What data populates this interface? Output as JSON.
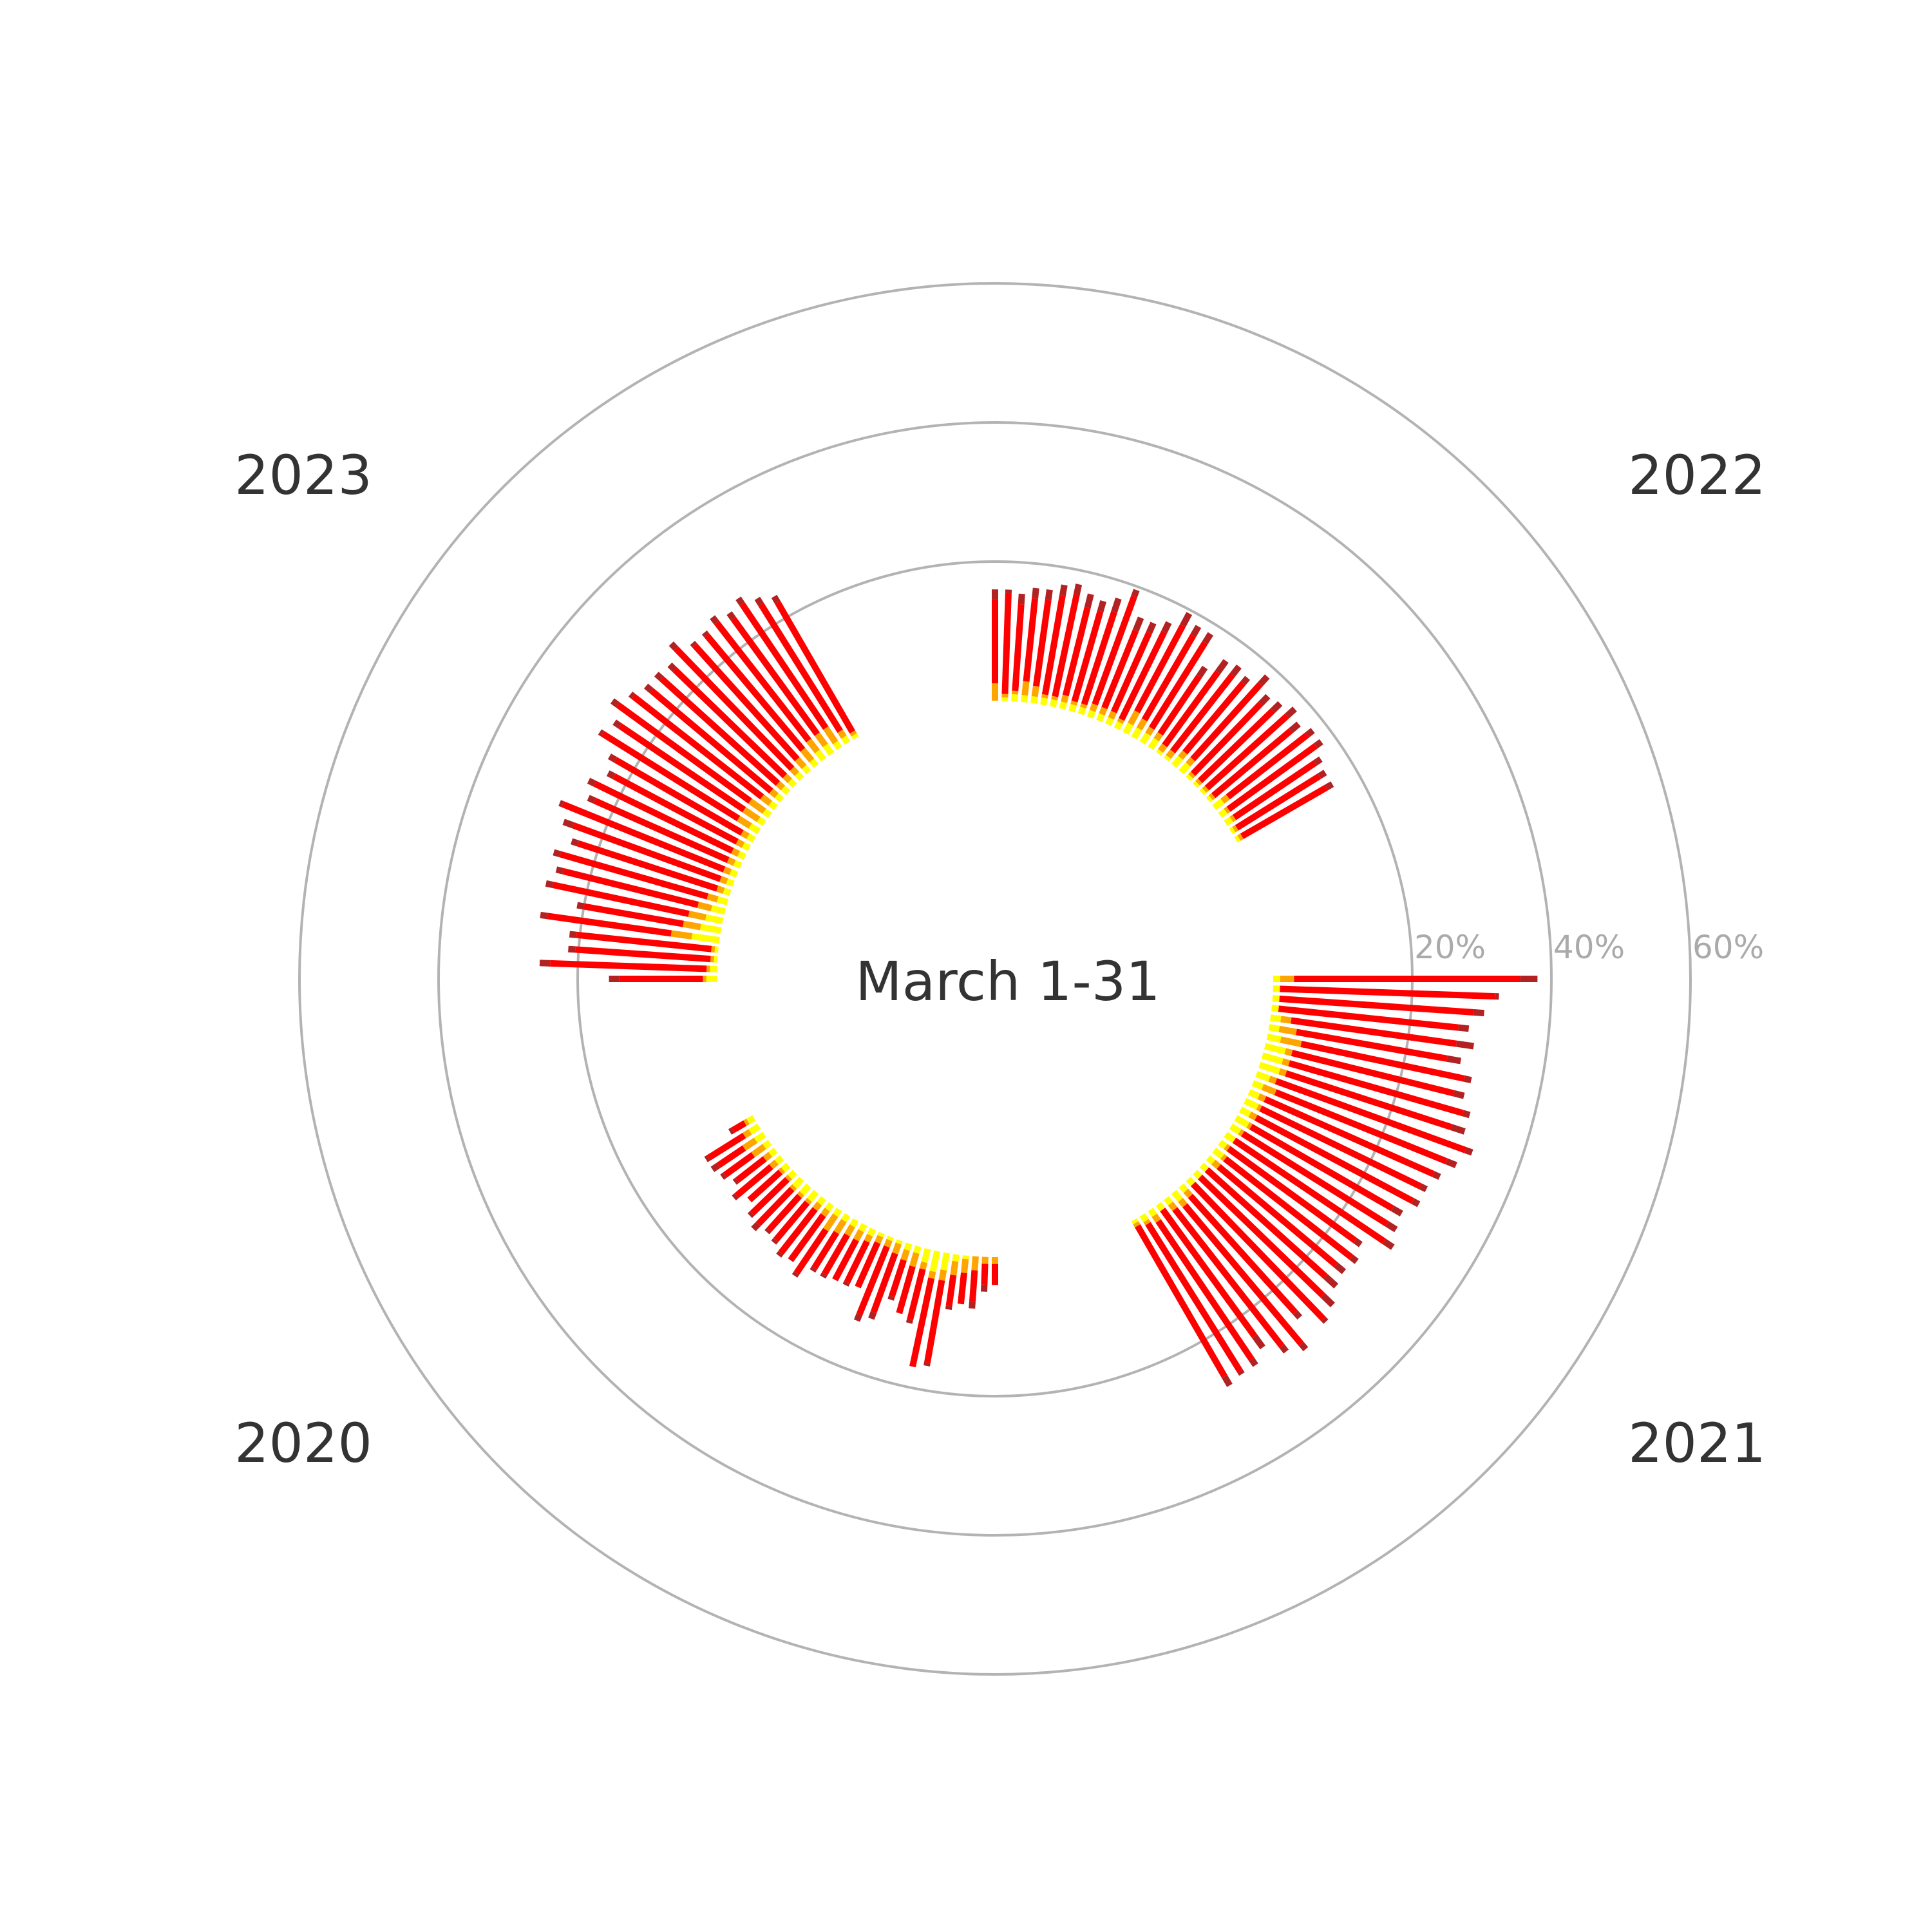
{
  "chart_data": {
    "type": "radial-stacked-bar",
    "title": "March 1-31",
    "radial_ticks": [
      "20%",
      "40%",
      "60%"
    ],
    "radial_tick_values": [
      20,
      40,
      60
    ],
    "rmax": 60,
    "grid": true,
    "segment_colors": {
      "yellow": "#ffff00",
      "orange": "#ffa500",
      "red": "#ff0000",
      "darkred": "#b22222"
    },
    "days": [
      1,
      2,
      3,
      4,
      5,
      6,
      7,
      8,
      9,
      10,
      11,
      12,
      13,
      14,
      15,
      16,
      17,
      18,
      19,
      20,
      21,
      22,
      23,
      24,
      25,
      26,
      27,
      28,
      29,
      30,
      31
    ],
    "years": [
      {
        "year": "2021",
        "start_angle_deg": 0,
        "series": [
          {
            "name": "yellow",
            "values": [
              1.0,
              1.0,
              1.0,
              1.0,
              1.5,
              1.5,
              2.0,
              3.0,
              3.0,
              3.0,
              2.0,
              1.5,
              1.5,
              2.0,
              1.5,
              2.0,
              1.5,
              1.5,
              1.0,
              1.5,
              1.0,
              1.0,
              1.0,
              1.0,
              1.0,
              1.5,
              1.0,
              1.0,
              1.0,
              1.0,
              0.5
            ]
          },
          {
            "name": "orange",
            "values": [
              2.0,
              0.0,
              0.0,
              0.0,
              1.5,
              2.5,
              3.0,
              1.0,
              1.0,
              1.0,
              1.0,
              2.0,
              1.0,
              0.5,
              1.0,
              0.5,
              0.5,
              0.0,
              0.5,
              0.5,
              1.0,
              0.0,
              0.0,
              0.0,
              1.0,
              1.0,
              1.0,
              0.0,
              1.0,
              0.5,
              0.5
            ]
          },
          {
            "name": "red",
            "values": [
              32.5,
              31.0,
              28.0,
              26.0,
              24.0,
              22.0,
              24.0,
              24.0,
              26.0,
              25.0,
              29.0,
              26.5,
              26.5,
              25.5,
              25.5,
              23.5,
              24.5,
              26.0,
              22.5,
              23.0,
              22.0,
              23.0,
              24.5,
              27.0,
              22.5,
              26.0,
              25.0,
              22.5,
              24.0,
              25.0,
              25.0
            ]
          },
          {
            "name": "darkred",
            "values": [
              2.5,
              0.5,
              1.5,
              1.5,
              2.5,
              2.0,
              1.0,
              1.5,
              1.0,
              2.0,
              1.0,
              1.5,
              1.0,
              1.0,
              1.0,
              1.5,
              1.5,
              1.5,
              1.0,
              1.0,
              1.5,
              2.0,
              2.0,
              0.5,
              1.0,
              1.0,
              1.0,
              2.0,
              1.0,
              0.5,
              1.5
            ]
          }
        ]
      },
      {
        "year": "2020",
        "start_angle_deg": 90,
        "series": [
          {
            "name": "yellow",
            "values": [
              0.0,
              0.0,
              0.0,
              0.5,
              1.0,
              2.5,
              3.0,
              2.0,
              1.0,
              1.0,
              0.5,
              0.5,
              0.5,
              1.0,
              1.0,
              1.0,
              1.0,
              1.0,
              1.0,
              1.0,
              1.5,
              1.5,
              1.5,
              1.0,
              1.0,
              1.0,
              1.0,
              1.0,
              1.5,
              1.5,
              1.0
            ]
          },
          {
            "name": "orange",
            "values": [
              1.0,
              1.0,
              2.0,
              2.0,
              2.0,
              1.5,
              1.0,
              1.0,
              2.0,
              1.5,
              1.5,
              1.0,
              1.0,
              1.0,
              1.5,
              1.5,
              2.0,
              2.5,
              1.0,
              1.0,
              0.5,
              0.5,
              0.5,
              0.5,
              0.5,
              1.0,
              1.0,
              2.0,
              2.0,
              1.0,
              0.5
            ]
          },
          {
            "name": "red",
            "values": [
              3.0,
              3.0,
              4.5,
              4.5,
              4.5,
              12.0,
              13.0,
              7.5,
              7.0,
              5.5,
              9.0,
              10.5,
              7.0,
              6.5,
              6.5,
              6.5,
              6.0,
              7.5,
              8.0,
              8.0,
              7.0,
              6.5,
              7.0,
              7.0,
              6.0,
              6.5,
              5.0,
              5.0,
              4.5,
              6.0,
              2.0
            ]
          },
          {
            "name": "darkred",
            "values": [
              0.0,
              1.0,
              1.0,
              0.0,
              0.5,
              0.5,
              0.0,
              0.5,
              0.0,
              0.5,
              1.0,
              1.0,
              0.0,
              0.5,
              0.0,
              0.5,
              0.5,
              0.5,
              0.0,
              0.5,
              0.5,
              0.5,
              1.0,
              0.5,
              0.0,
              0.5,
              0.5,
              0.5,
              1.0,
              0.5,
              0.5
            ]
          }
        ]
      },
      {
        "year": "2023",
        "start_angle_deg": 180,
        "series": [
          {
            "name": "yellow",
            "values": [
              1.5,
              1.0,
              0.5,
              0.5,
              4.0,
              3.0,
              2.5,
              2.0,
              1.5,
              1.0,
              1.0,
              1.0,
              1.0,
              1.0,
              1.0,
              1.0,
              1.5,
              1.0,
              1.0,
              1.0,
              1.0,
              1.0,
              1.0,
              1.0,
              1.0,
              1.0,
              1.5,
              1.5,
              1.0,
              1.0,
              0.5
            ]
          },
          {
            "name": "orange",
            "values": [
              0.5,
              0.5,
              0.5,
              0.5,
              3.0,
              2.5,
              2.5,
              2.0,
              1.5,
              1.0,
              1.0,
              1.0,
              1.0,
              1.0,
              1.0,
              1.0,
              2.0,
              2.5,
              2.5,
              1.5,
              1.0,
              1.0,
              1.0,
              1.0,
              1.5,
              2.0,
              2.0,
              2.0,
              2.5,
              1.0,
              0.5
            ]
          },
          {
            "name": "red",
            "values": [
              12.0,
              22.5,
              19.5,
              19.5,
              18.0,
              14.5,
              20.0,
              20.0,
              22.0,
              21.0,
              22.5,
              25.0,
              21.0,
              22.0,
              20.0,
              21.0,
              23.0,
              21.5,
              23.5,
              23.5,
              22.5,
              22.5,
              22.0,
              24.0,
              22.0,
              21.5,
              21.5,
              20.5,
              21.5,
              21.5,
              21.5
            ]
          },
          {
            "name": "darkred",
            "values": [
              1.5,
              1.5,
              1.0,
              1.0,
              1.0,
              1.0,
              1.0,
              1.0,
              1.0,
              1.0,
              1.5,
              0.5,
              1.0,
              1.0,
              1.0,
              1.0,
              0.5,
              1.0,
              1.0,
              0.5,
              1.0,
              1.0,
              1.0,
              1.0,
              0.5,
              0.5,
              1.0,
              1.0,
              1.0,
              1.0,
              1.0
            ]
          }
        ]
      },
      {
        "year": "2022",
        "start_angle_deg": 270,
        "series": [
          {
            "name": "yellow",
            "values": [
              0.0,
              0.5,
              1.0,
              1.0,
              1.0,
              1.0,
              1.0,
              1.0,
              1.0,
              1.0,
              1.0,
              1.0,
              1.0,
              1.0,
              1.5,
              1.5,
              1.5,
              1.5,
              0.5,
              0.5,
              1.5,
              1.5,
              0.5,
              0.5,
              0.5,
              0.5,
              1.5,
              1.0,
              1.0,
              0.5,
              0.5
            ]
          },
          {
            "name": "orange",
            "values": [
              2.5,
              0.5,
              0.5,
              2.0,
              1.5,
              0.5,
              0.5,
              1.0,
              0.5,
              0.5,
              1.0,
              1.0,
              1.0,
              0.5,
              2.0,
              1.5,
              1.0,
              1.0,
              1.0,
              1.0,
              1.0,
              1.0,
              0.5,
              0.5,
              0.5,
              0.5,
              1.0,
              0.5,
              0.5,
              0.5,
              0.5
            ]
          },
          {
            "name": "red",
            "values": [
              12.0,
              14.5,
              12.5,
              12.0,
              12.5,
              14.5,
              15.0,
              13.0,
              13.5,
              14.0,
              16.5,
              12.0,
              12.5,
              14.0,
              14.0,
              14.0,
              14.5,
              10.0,
              13.0,
              14.0,
              13.0,
              14.5,
              14.0,
              14.5,
              15.5,
              14.5,
              14.5,
              15.5,
              14.0,
              14.0,
              14.0
            ]
          },
          {
            "name": "darkred",
            "values": [
              1.5,
              0.5,
              1.5,
              1.5,
              1.5,
              1.5,
              1.5,
              2.0,
              1.5,
              2.0,
              1.0,
              2.0,
              1.5,
              1.5,
              2.0,
              1.5,
              1.5,
              1.5,
              2.0,
              1.5,
              1.0,
              1.5,
              1.5,
              1.5,
              1.5,
              1.5,
              1.0,
              1.0,
              1.0,
              1.0,
              1.0
            ]
          }
        ]
      }
    ]
  }
}
